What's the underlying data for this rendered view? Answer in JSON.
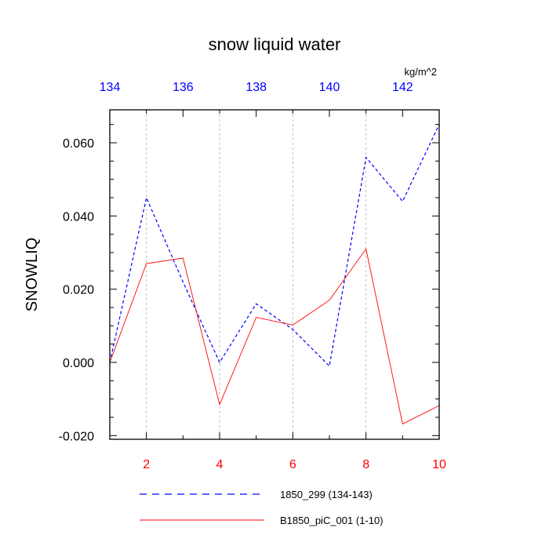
{
  "chart_data": {
    "type": "line",
    "title": "snow liquid water",
    "ylabel": "SNOWLIQ",
    "unit_label": "kg/m^2",
    "ylim": [
      -0.021,
      0.069
    ],
    "yticks": [
      -0.02,
      0.0,
      0.02,
      0.04,
      0.06
    ],
    "ytick_labels": [
      "-0.020",
      "0.000",
      "0.020",
      "0.040",
      "0.060"
    ],
    "xlim_bottom": [
      1,
      10
    ],
    "xticks_bottom": [
      2,
      4,
      6,
      8,
      10
    ],
    "xlim_top": [
      134,
      143
    ],
    "xticks_top": [
      134,
      136,
      138,
      140,
      142
    ],
    "bottom_axis_color": "#ff0000",
    "top_axis_color": "#0000ff",
    "grid": "vertical dashed at bottom ticks",
    "legend_placement": "bottom",
    "series": [
      {
        "name": "1850_299 (134-143)",
        "axis": "top",
        "color": "#0000ff",
        "style": "dashed",
        "x": [
          134,
          135,
          136,
          137,
          138,
          139,
          140,
          141,
          142,
          143
        ],
        "y": [
          0.0,
          0.045,
          0.022,
          0.0,
          0.016,
          0.009,
          -0.001,
          0.056,
          0.044,
          0.065
        ]
      },
      {
        "name": "B1850_piC_001 (1-10)",
        "axis": "bottom",
        "color": "#ff0000",
        "style": "solid",
        "x": [
          1,
          2,
          3,
          4,
          5,
          6,
          7,
          8,
          9,
          10
        ],
        "y": [
          0.0,
          0.027,
          0.0285,
          -0.0115,
          0.0123,
          0.0102,
          0.017,
          0.031,
          -0.0168,
          -0.0118
        ]
      }
    ]
  }
}
